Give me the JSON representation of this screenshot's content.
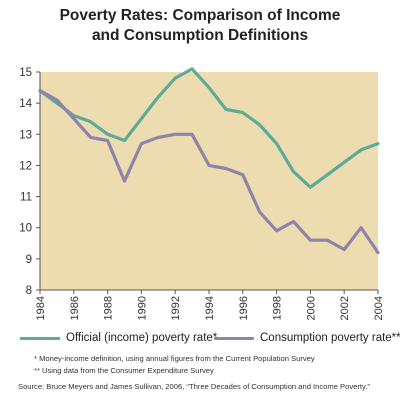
{
  "title_lines": [
    "Poverty Rates: Comparison of Income",
    "and Consumption Definitions"
  ],
  "chart_data": {
    "type": "line",
    "title": "Poverty Rates: Comparison of Income and Consumption Definitions",
    "x": [
      1984,
      1985,
      1986,
      1987,
      1988,
      1989,
      1990,
      1991,
      1992,
      1993,
      1994,
      1995,
      1996,
      1997,
      1998,
      1999,
      2000,
      2001,
      2002,
      2003,
      2004
    ],
    "x_ticks": [
      "1984",
      "1986",
      "1988",
      "1990",
      "1992",
      "1994",
      "1996",
      "1998",
      "2000",
      "2002",
      "2004"
    ],
    "y_ticks": [
      "8",
      "9",
      "10",
      "11",
      "12",
      "13",
      "14",
      "15"
    ],
    "xlim": [
      1984,
      2004
    ],
    "ylim": [
      8,
      15
    ],
    "grid": false,
    "legend_position": "bottom",
    "series": [
      {
        "name": "Official (income) poverty rate*",
        "color": "#5bab98",
        "values": [
          14.4,
          14.0,
          13.6,
          13.4,
          13.0,
          12.8,
          13.5,
          14.2,
          14.8,
          15.1,
          14.5,
          13.8,
          13.7,
          13.3,
          12.7,
          11.8,
          11.3,
          11.7,
          12.1,
          12.5,
          12.7
        ]
      },
      {
        "name": "Consumption poverty rate**",
        "color": "#8e84aa",
        "values": [
          14.4,
          14.1,
          13.5,
          12.9,
          12.8,
          11.5,
          12.7,
          12.9,
          13.0,
          13.0,
          12.0,
          11.9,
          11.7,
          10.5,
          9.9,
          10.2,
          9.6,
          9.6,
          9.3,
          10.0,
          9.2
        ]
      }
    ]
  },
  "footnotes": [
    "* Money-income definition, using annual figures from the Current Population Survey",
    "** Using data from the Consumer Expenditure Survey"
  ],
  "source": "Source: Bruce Meyers and James Sullivan, 2006, “Three Decades of Consumption and Income Poverty.”"
}
